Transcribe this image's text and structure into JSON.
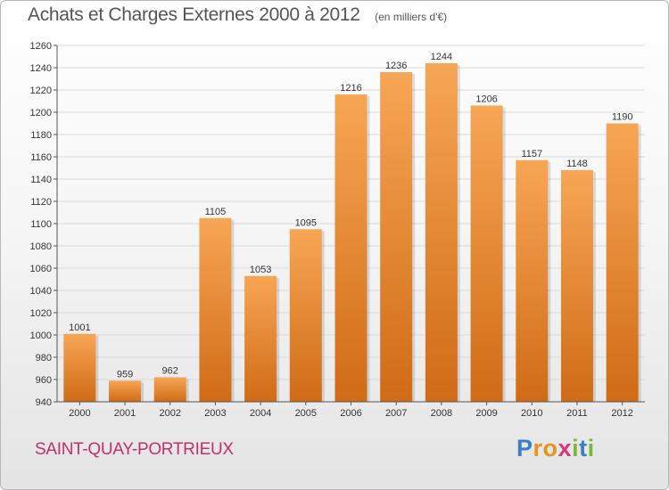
{
  "header": {
    "title": "Achats et Charges Externes 2000 à 2012",
    "unit": "(en milliers d'€)"
  },
  "footer": {
    "place": "SAINT-QUAY-PORTRIEUX",
    "logo_letters": [
      "P",
      "r",
      "o",
      "x",
      "i",
      "t",
      "i"
    ],
    "logo_colors": [
      "#3a7fc4",
      "#e8931d",
      "#e8931d",
      "#d8367a",
      "#7ab83a",
      "#3a7fc4",
      "#7ab83a"
    ]
  },
  "colors": {
    "bar_top": "#f7a655",
    "bar_bottom": "#d06b16",
    "grid": "#d9d9d9",
    "axis": "#555555"
  },
  "chart_data": {
    "type": "bar",
    "categories": [
      "2000",
      "2001",
      "2002",
      "2003",
      "2004",
      "2005",
      "2006",
      "2007",
      "2008",
      "2009",
      "2010",
      "2011",
      "2012"
    ],
    "values": [
      1001,
      959,
      962,
      1105,
      1053,
      1095,
      1216,
      1236,
      1244,
      1206,
      1157,
      1148,
      1190
    ],
    "yticks": [
      940,
      960,
      980,
      1000,
      1020,
      1040,
      1060,
      1080,
      1100,
      1120,
      1140,
      1160,
      1180,
      1200,
      1220,
      1240,
      1260
    ],
    "ylim": [
      940,
      1260
    ],
    "grid": true,
    "title": "Achats et Charges Externes 2000 à 2012",
    "xlabel": "",
    "ylabel": ""
  }
}
